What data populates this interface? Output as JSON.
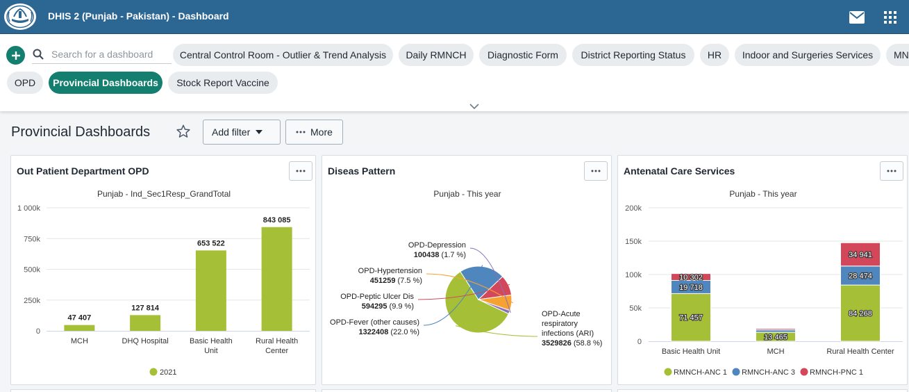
{
  "header": {
    "title": "DHIS 2 (Punjab - Pakistan) - Dashboard"
  },
  "icons": {
    "logo": "punjab-emblem-icon",
    "messages": "mail-icon",
    "apps": "apps-grid-icon",
    "add": "plus-icon",
    "search": "search-icon",
    "expand": "chevron-down-icon",
    "star": "star-icon",
    "more": "dots-icon"
  },
  "control_bar": {
    "search_placeholder": "Search for a dashboard",
    "dashboards": [
      {
        "label": "Central Control Room - Outlier & Trend Analysis",
        "active": false
      },
      {
        "label": "Daily RMNCH",
        "active": false
      },
      {
        "label": "Diagnostic Form",
        "active": false
      },
      {
        "label": "District Reporting Status",
        "active": false
      },
      {
        "label": "HR",
        "active": false
      },
      {
        "label": "Indoor and Surgeries Services",
        "active": false
      },
      {
        "label": "MN",
        "active": false
      },
      {
        "label": "OPD",
        "active": false
      },
      {
        "label": "Provincial Dashboards",
        "active": true
      },
      {
        "label": "Stock Report Vaccine",
        "active": false
      }
    ]
  },
  "title_bar": {
    "title": "Provincial Dashboards",
    "add_filter": "Add filter",
    "more": "More"
  },
  "colors": {
    "header": "#2c6693",
    "accent": "#147e6f",
    "green": "#a5bf36",
    "blue": "#4f86be",
    "red": "#d3475a",
    "orange": "#f5a233",
    "purple": "#8b6fb8"
  },
  "cards": [
    {
      "title": "Out Patient Department OPD"
    },
    {
      "title": "Diseas Pattern"
    },
    {
      "title": "Antenatal Care Services"
    }
  ],
  "chart_data": [
    {
      "type": "bar",
      "title": "Punjab - Ind_Sec1Resp_GrandTotal",
      "categories": [
        "MCH",
        "DHQ Hospital",
        "Basic Health Unit",
        "Rural Health Center"
      ],
      "series": [
        {
          "name": "2021",
          "values": [
            47407,
            127814,
            653522,
            843085
          ]
        }
      ],
      "value_labels": [
        "47 407",
        "127 814",
        "653 522",
        "843 085"
      ],
      "yticks": [
        "0",
        "250k",
        "500k",
        "750k",
        "1 000k"
      ],
      "ylim": [
        0,
        1000000
      ],
      "legend": "bottom"
    },
    {
      "type": "pie",
      "title": "Punjab - This year",
      "slices": [
        {
          "name": "OPD-Acute respiratory infections (ARI)",
          "value": 3529826,
          "percent": "58.8 %",
          "value_label": "3529826"
        },
        {
          "name": "OPD-Fever (other causes)",
          "value": 1322408,
          "percent": "22.0 %",
          "value_label": "1322408"
        },
        {
          "name": "OPD-Peptic Ulcer Dis",
          "value": 594295,
          "percent": "9.9 %",
          "value_label": "594295"
        },
        {
          "name": "OPD-Hypertension",
          "value": 451259,
          "percent": "7.5 %",
          "value_label": "451259"
        },
        {
          "name": "OPD-Depression",
          "value": 100438,
          "percent": "1.7 %",
          "value_label": "100438"
        }
      ]
    },
    {
      "type": "bar",
      "stacked": true,
      "title": "Punjab - This year",
      "categories": [
        "Basic Health Unit",
        "MCH",
        "Rural Health Center"
      ],
      "series": [
        {
          "name": "RMNCH-ANC 1",
          "values": [
            71457,
            13465,
            84268
          ],
          "labels": [
            "71 457",
            "13 465",
            "84 268"
          ]
        },
        {
          "name": "RMNCH-ANC 3",
          "values": [
            19718,
            3500,
            28474
          ],
          "labels": [
            "19 718",
            "",
            "28 474"
          ]
        },
        {
          "name": "RMNCH-PNC 1",
          "values": [
            10302,
            2000,
            34941
          ],
          "labels": [
            "10 302",
            "",
            "34 941"
          ]
        }
      ],
      "yticks": [
        "0",
        "50k",
        "100k",
        "150k",
        "200k"
      ],
      "ylim": [
        0,
        200000
      ],
      "legend": "bottom"
    }
  ]
}
